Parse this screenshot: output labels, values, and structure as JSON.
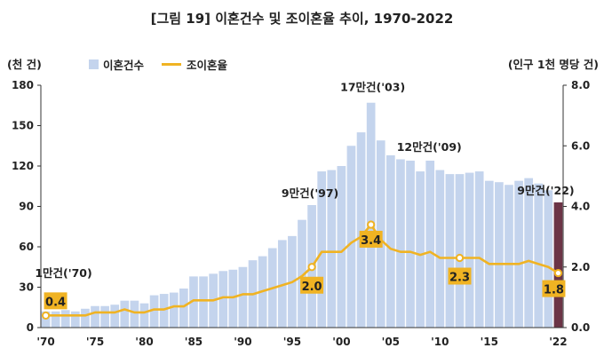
{
  "chart_data": {
    "type": "bar",
    "title": "[그림 19] 이혼건수 및 조이혼율 추이, 1970-2022",
    "left_unit": "(천 건)",
    "right_unit": "(인구 1천 명당 건)",
    "ylim_left": [
      0,
      180
    ],
    "ylim_right": [
      0,
      8
    ],
    "left_ticks": [
      "0",
      "30",
      "60",
      "90",
      "120",
      "150",
      "180"
    ],
    "right_ticks": [
      "0.0",
      "2.0",
      "4.0",
      "6.0",
      "8.0"
    ],
    "x_tick_labels": [
      "'70",
      "'75",
      "'80",
      "'85",
      "'90",
      "'95",
      "'00",
      "'05",
      "'10",
      "'15",
      "'22"
    ],
    "x_tick_years": [
      1970,
      1975,
      1980,
      1985,
      1990,
      1995,
      2000,
      2005,
      2010,
      2015,
      2022
    ],
    "years": [
      1970,
      1971,
      1972,
      1973,
      1974,
      1975,
      1976,
      1977,
      1978,
      1979,
      1980,
      1981,
      1982,
      1983,
      1984,
      1985,
      1986,
      1987,
      1988,
      1989,
      1990,
      1991,
      1992,
      1993,
      1994,
      1995,
      1996,
      1997,
      1998,
      1999,
      2000,
      2001,
      2002,
      2003,
      2004,
      2005,
      2006,
      2007,
      2008,
      2009,
      2010,
      2011,
      2012,
      2013,
      2014,
      2015,
      2016,
      2017,
      2018,
      2019,
      2020,
      2021,
      2022
    ],
    "series": [
      {
        "name": "이혼건수",
        "axis": "left",
        "color": "#c4d4ed",
        "highlight_color": "#6b3446",
        "values": [
          12,
          12,
          13,
          12,
          14,
          16,
          16,
          17,
          20,
          20,
          18,
          24,
          25,
          26,
          29,
          38,
          38,
          40,
          42,
          43,
          45,
          50,
          53,
          59,
          65,
          68,
          80,
          91,
          116,
          117,
          120,
          135,
          145,
          167,
          139,
          128,
          125,
          124,
          116,
          124,
          117,
          114,
          114,
          115,
          116,
          109,
          108,
          106,
          109,
          111,
          107,
          102,
          93
        ]
      },
      {
        "name": "조이혼율",
        "axis": "right",
        "color": "#f0b323",
        "values": [
          0.4,
          0.4,
          0.4,
          0.4,
          0.4,
          0.5,
          0.5,
          0.5,
          0.6,
          0.5,
          0.5,
          0.6,
          0.6,
          0.7,
          0.7,
          0.9,
          0.9,
          0.9,
          1.0,
          1.0,
          1.1,
          1.1,
          1.2,
          1.3,
          1.4,
          1.5,
          1.7,
          2.0,
          2.5,
          2.5,
          2.5,
          2.8,
          3.0,
          3.4,
          2.9,
          2.6,
          2.5,
          2.5,
          2.4,
          2.5,
          2.3,
          2.3,
          2.3,
          2.3,
          2.3,
          2.1,
          2.1,
          2.1,
          2.1,
          2.2,
          2.1,
          2.0,
          1.8
        ]
      }
    ],
    "count_annotations": [
      {
        "text": "1만건('70)",
        "year": 1970
      },
      {
        "text": "9만건('97)",
        "year": 1997
      },
      {
        "text": "17만건('03)",
        "year": 2003
      },
      {
        "text": "12만건('09)",
        "year": 2009
      },
      {
        "text": "9만건('22)",
        "year": 2022
      }
    ],
    "rate_labels": [
      {
        "text": "0.4",
        "year": 1970
      },
      {
        "text": "2.0",
        "year": 1997
      },
      {
        "text": "3.4",
        "year": 2003
      },
      {
        "text": "2.3",
        "year": 2012
      },
      {
        "text": "1.8",
        "year": 2022
      }
    ],
    "marker_years": [
      1970,
      1997,
      2003,
      2012,
      2022
    ],
    "legend_placement": "top-left",
    "grid": false
  }
}
